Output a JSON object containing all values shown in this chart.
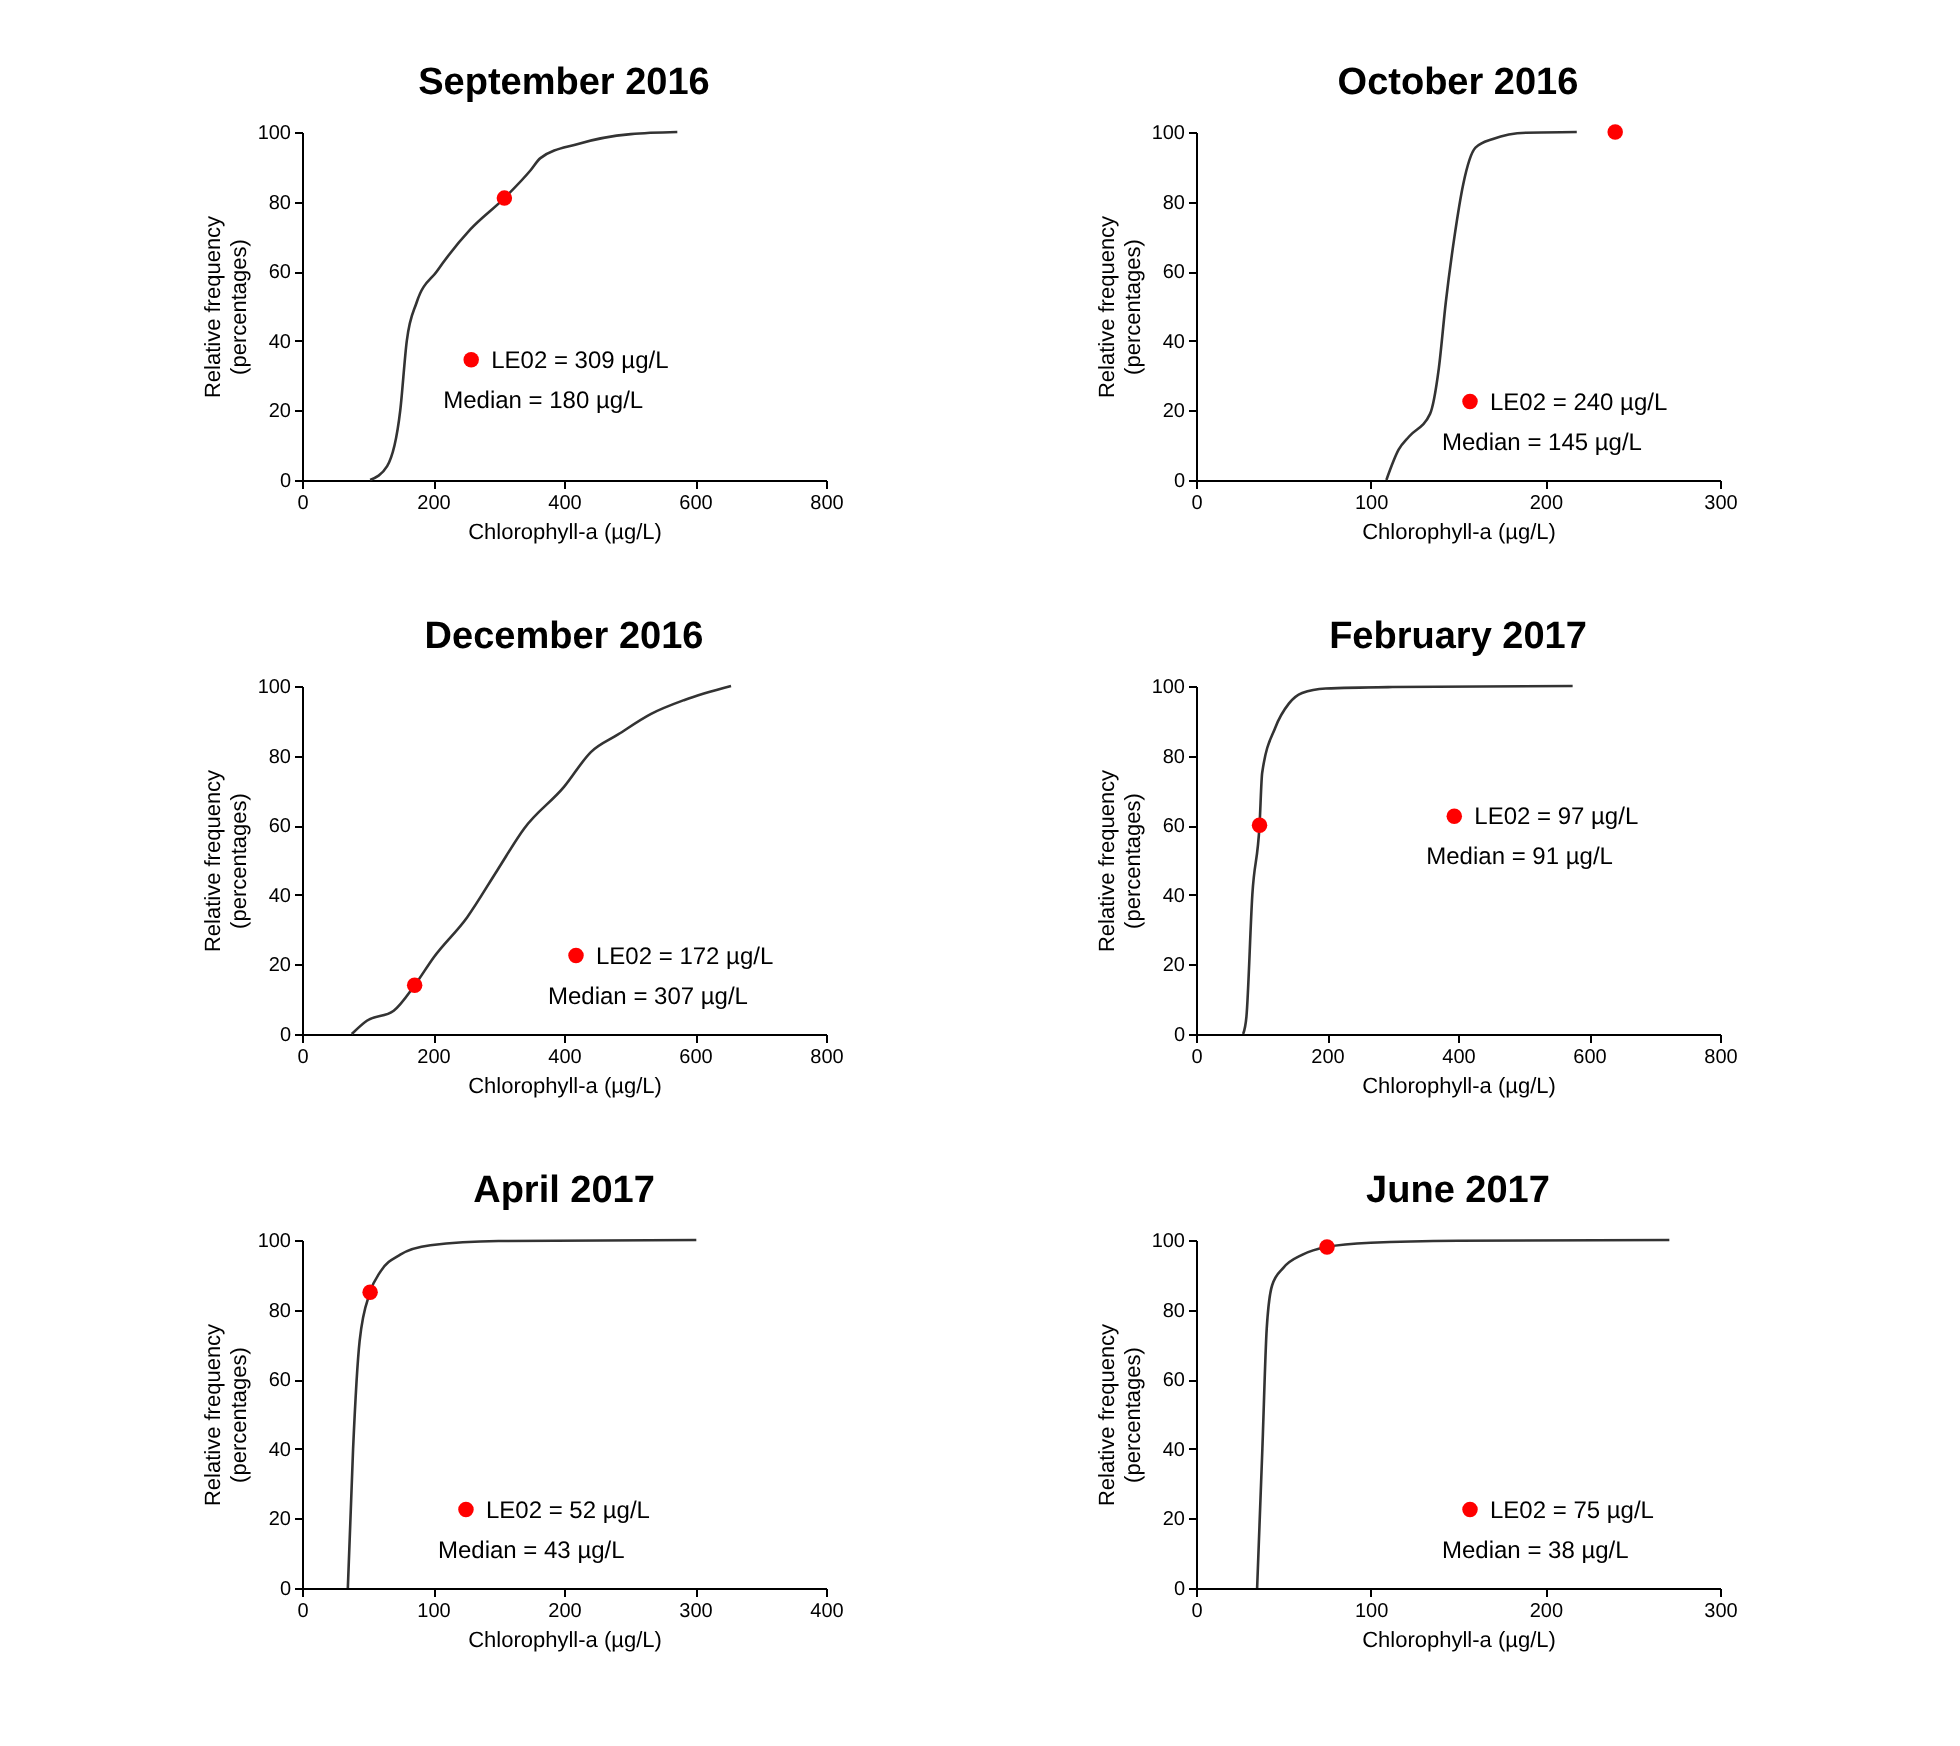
{
  "chart_data": [
    {
      "type": "line",
      "title": "September 2016",
      "xlabel": "Chlorophyll-a (µg/L)",
      "ylabel": "Relative frequency\n(percentages)",
      "xlim": [
        0,
        800
      ],
      "xticks": [
        0,
        200,
        400,
        600,
        800
      ],
      "ylim": [
        0,
        100
      ],
      "yticks": [
        0,
        20,
        40,
        60,
        80,
        100
      ],
      "grid": false,
      "legend": "center",
      "annotations": [
        "Median = 180 µg/L"
      ],
      "series": [
        {
          "type": "line",
          "color": "#333333",
          "x": [
            104,
            130,
            150,
            160,
            175,
            206,
            257,
            309,
            349,
            364,
            420,
            502,
            573
          ],
          "values": [
            0,
            4,
            20,
            40,
            51,
            60,
            72,
            81,
            89,
            92.5,
            96.5,
            99.4,
            100
          ]
        },
        {
          "type": "scatter",
          "name": "LE02 = 309 µg/L",
          "color": "#ff0000",
          "x": [
            309
          ],
          "values": [
            81
          ]
        }
      ]
    },
    {
      "type": "line",
      "title": "October 2016",
      "xlabel": "Chlorophyll-a (µg/L)",
      "ylabel": "Relative frequency\n(percentages)",
      "xlim": [
        0,
        300
      ],
      "xticks": [
        0,
        100,
        200,
        300
      ],
      "ylim": [
        0,
        100
      ],
      "yticks": [
        0,
        20,
        40,
        60,
        80,
        100
      ],
      "grid": false,
      "legend": "bottom right",
      "annotations": [
        "Median = 145 µg/L"
      ],
      "series": [
        {
          "type": "line",
          "color": "#333333",
          "x": [
            109,
            116,
            122,
            134,
            139,
            143,
            148,
            153,
            160,
            170,
            189,
            218
          ],
          "values": [
            0,
            8.7,
            12.5,
            19,
            32,
            51,
            70,
            85,
            95.5,
            98,
            99.8,
            100
          ]
        },
        {
          "type": "scatter",
          "name": "LE02 = 240 µg/L",
          "color": "#ff0000",
          "x": [
            240
          ],
          "values": [
            100
          ]
        }
      ]
    },
    {
      "type": "line",
      "title": "December 2016",
      "xlabel": "Chlorophyll-a (µg/L)",
      "ylabel": "Relative frequency\n(percentages)",
      "xlim": [
        0,
        800
      ],
      "xticks": [
        0,
        200,
        400,
        600,
        800
      ],
      "ylim": [
        0,
        100
      ],
      "yticks": [
        0,
        20,
        40,
        60,
        80,
        100
      ],
      "grid": false,
      "legend": "bottom right",
      "annotations": [
        "Median = 307 µg/L"
      ],
      "series": [
        {
          "type": "line",
          "color": "#333333",
          "x": [
            76,
            99,
            140,
            172,
            201,
            252,
            298,
            339,
            400,
            441,
            482,
            533,
            584,
            655
          ],
          "values": [
            0,
            3.8,
            6.7,
            14,
            22,
            33.5,
            47,
            59,
            71,
            81,
            86,
            92,
            96,
            100
          ]
        },
        {
          "type": "scatter",
          "name": "LE02 = 172 µg/L",
          "color": "#ff0000",
          "x": [
            172
          ],
          "values": [
            14
          ]
        }
      ]
    },
    {
      "type": "line",
      "title": "February 2017",
      "xlabel": "Chlorophyll-a (µg/L)",
      "ylabel": "Relative frequency\n(percentages)",
      "xlim": [
        0,
        800
      ],
      "xticks": [
        0,
        200,
        400,
        600,
        800
      ],
      "ylim": [
        0,
        100
      ],
      "yticks": [
        0,
        20,
        40,
        60,
        80,
        100
      ],
      "grid": false,
      "legend": "center right",
      "annotations": [
        "Median = 91 µg/L"
      ],
      "series": [
        {
          "type": "line",
          "color": "#333333",
          "x": [
            72,
            77,
            86,
            97,
            101,
            121,
            142,
            162,
            198,
            300,
            575
          ],
          "values": [
            0,
            5,
            40,
            60,
            75,
            88,
            95,
            98,
            99.3,
            99.7,
            100
          ]
        },
        {
          "type": "scatter",
          "name": "LE02 = 97 µg/L",
          "color": "#ff0000",
          "x": [
            97
          ],
          "values": [
            60
          ]
        }
      ]
    },
    {
      "type": "line",
      "title": "April 2017",
      "xlabel": "Chlorophyll-a (µg/L)",
      "ylabel": "Relative frequency\n(percentages)",
      "xlim": [
        0,
        400
      ],
      "xticks": [
        0,
        100,
        200,
        300,
        400
      ],
      "ylim": [
        0,
        100
      ],
      "yticks": [
        0,
        20,
        40,
        60,
        80,
        100
      ],
      "grid": false,
      "legend": "bottom",
      "annotations": [
        "Median = 43 µg/L"
      ],
      "series": [
        {
          "type": "line",
          "color": "#333333",
          "x": [
            35,
            39,
            44,
            52,
            60,
            75,
            98,
            150,
            301
          ],
          "values": [
            0,
            40,
            71,
            85,
            91,
            95.8,
            98.5,
            99.7,
            100
          ]
        },
        {
          "type": "scatter",
          "name": "LE02 = 52 µg/L",
          "color": "#ff0000",
          "x": [
            52
          ],
          "values": [
            85
          ]
        }
      ]
    },
    {
      "type": "line",
      "title": "June 2017",
      "xlabel": "Chlorophyll-a (µg/L)",
      "ylabel": "Relative frequency\n(percentages)",
      "xlim": [
        0,
        300
      ],
      "xticks": [
        0,
        100,
        200,
        300
      ],
      "ylim": [
        0,
        100
      ],
      "yticks": [
        0,
        20,
        40,
        60,
        80,
        100
      ],
      "grid": false,
      "legend": "bottom right",
      "annotations": [
        "Median = 38 µg/L"
      ],
      "series": [
        {
          "type": "line",
          "color": "#333333",
          "x": [
            35,
            38,
            40.5,
            43.6,
            50,
            61,
            75,
            100,
            150,
            271
          ],
          "values": [
            0,
            40,
            74.6,
            87,
            92,
            95.8,
            98,
            99.2,
            99.8,
            100
          ]
        },
        {
          "type": "scatter",
          "name": "LE02 = 75 µg/L",
          "color": "#ff0000",
          "x": [
            75
          ],
          "values": [
            98
          ]
        }
      ]
    }
  ]
}
